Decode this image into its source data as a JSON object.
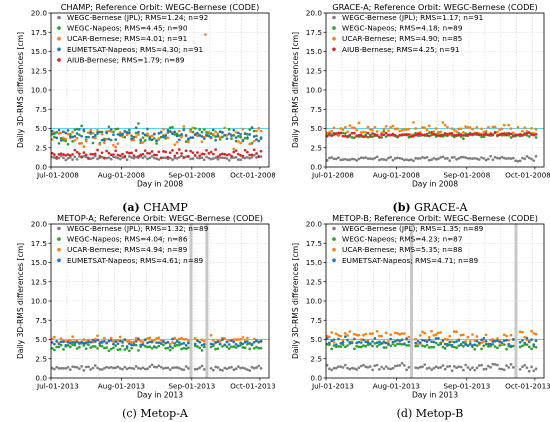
{
  "chart_data": [
    {
      "type": "scatter",
      "panel_label": "(a)",
      "caption_text": "CHAMP",
      "title": "CHAMP; Reference Orbit: WEGC-Bernese (CODE)",
      "xlabel": "Day in 2008",
      "ylabel": "Daily 3D-RMS differences [cm]",
      "ylim": [
        0,
        20
      ],
      "yticks": [
        "0.0",
        "2.5",
        "5.0",
        "7.5",
        "10.0",
        "12.5",
        "15.0",
        "17.5",
        "20.0"
      ],
      "xlim": [
        "2008-07-01",
        "2008-10-05"
      ],
      "xticks": [
        {
          "date": "2008-07-01",
          "label": "Jul-01-2008"
        },
        {
          "date": "2008-08-01",
          "label": "Aug-01-2008"
        },
        {
          "date": "2008-09-01",
          "label": "Sep-01-2008"
        },
        {
          "date": "2008-10-01",
          "label": "Oct-01-2008"
        }
      ],
      "reference_line": 5.0,
      "reference_line_color": "#5fd3e8",
      "grid": true,
      "legend_placement": "top-left",
      "gaps": [],
      "series": [
        {
          "name": "WEGC-Bernese (JPL); RMS=1.24; n=92",
          "color": "#7f7f7f",
          "mean": 1.2,
          "sd": 0.2
        },
        {
          "name": "WEGC-Napeos; RMS=4.45; n=90",
          "color": "#2ca02c",
          "mean": 4.2,
          "sd": 0.9
        },
        {
          "name": "UCAR-Bernese; RMS=4.01; n=91",
          "color": "#ff7f0e",
          "mean": 3.9,
          "sd": 0.9,
          "outliers": [
            {
              "date": "2008-09-07",
              "y": 17.2
            }
          ]
        },
        {
          "name": "EUMETSAT-Napeos; RMS=4.30; n=91",
          "color": "#1f77b4",
          "mean": 4.2,
          "sd": 0.7
        },
        {
          "name": "AIUB-Bernese; RMS=1.79; n=89",
          "color": "#d62728",
          "mean": 1.7,
          "sd": 0.4
        }
      ]
    },
    {
      "type": "scatter",
      "panel_label": "(b)",
      "caption_text": "GRACE-A",
      "title": "GRACE-A; Reference Orbit: WEGC-Bernese (CODE)",
      "xlabel": "Day in 2008",
      "ylabel": "Daily 3D-RMS differences [cm]",
      "ylim": [
        0,
        20
      ],
      "yticks": [
        "0.0",
        "2.5",
        "5.0",
        "7.5",
        "10.0",
        "12.5",
        "15.0",
        "17.5",
        "20.0"
      ],
      "xlim": [
        "2008-07-01",
        "2008-10-05"
      ],
      "xticks": [
        {
          "date": "2008-07-01",
          "label": "Jul-01-2008"
        },
        {
          "date": "2008-08-01",
          "label": "Aug-01-2008"
        },
        {
          "date": "2008-09-01",
          "label": "Sep-01-2008"
        },
        {
          "date": "2008-10-01",
          "label": "Oct-01-2008"
        }
      ],
      "reference_line": 5.0,
      "reference_line_color": "#5fd3e8",
      "grid": true,
      "legend_placement": "top-left",
      "gaps": [],
      "series": [
        {
          "name": "WEGC-Bernese (JPL); RMS=1.17; n=91",
          "color": "#7f7f7f",
          "mean": 1.1,
          "sd": 0.2
        },
        {
          "name": "WEGC-Napeos; RMS=4.18; n=89",
          "color": "#2ca02c",
          "mean": 4.15,
          "sd": 0.25
        },
        {
          "name": "UCAR-Bernese; RMS=4.90; n=85",
          "color": "#ff7f0e",
          "mean": 4.8,
          "sd": 0.6
        },
        {
          "name": "AIUB-Bernese; RMS=4.25; n=91",
          "color": "#d62728",
          "mean": 4.2,
          "sd": 0.2
        }
      ]
    },
    {
      "type": "scatter",
      "panel_label": "(c)",
      "caption_text": "Metop-A",
      "title": "METOP-A; Reference Orbit: WEGC-Bernese (CODE)",
      "xlabel": "Day in 2013",
      "ylabel": "Daily 3D-RMS differences [cm]",
      "ylim": [
        0,
        20
      ],
      "yticks": [
        "0.0",
        "2.5",
        "5.0",
        "7.5",
        "10.0",
        "12.5",
        "15.0",
        "17.5",
        "20.0"
      ],
      "xlim": [
        "2013-07-01",
        "2013-10-05"
      ],
      "xticks": [
        {
          "date": "2013-07-01",
          "label": "Jul-01-2013"
        },
        {
          "date": "2013-08-01",
          "label": "Aug-01-2013"
        },
        {
          "date": "2013-09-01",
          "label": "Sep-01-2013"
        },
        {
          "date": "2013-10-01",
          "label": "Oct-01-2013"
        }
      ],
      "reference_line": 5.0,
      "reference_line_color": "#5fd3e8",
      "grid": true,
      "legend_placement": "top-left",
      "gaps": [
        [
          "2013-08-31",
          "2013-09-01"
        ],
        [
          "2013-09-07",
          "2013-09-08"
        ]
      ],
      "series": [
        {
          "name": "WEGC-Bernese (JPL); RMS=1.32; n=89",
          "color": "#7f7f7f",
          "mean": 1.3,
          "sd": 0.2
        },
        {
          "name": "WEGC-Napeos; RMS=4.04; n=86",
          "color": "#2ca02c",
          "mean": 4.0,
          "sd": 0.3
        },
        {
          "name": "UCAR-Bernese; RMS=4.94; n=89",
          "color": "#ff7f0e",
          "mean": 4.9,
          "sd": 0.35
        },
        {
          "name": "EUMETSAT-Napeos; RMS=4.61; n=89",
          "color": "#1f77b4",
          "mean": 4.6,
          "sd": 0.3
        }
      ]
    },
    {
      "type": "scatter",
      "panel_label": "(d)",
      "caption_text": "Metop-B",
      "title": "METOP-B; Reference Orbit: WEGC-Bernese (CODE)",
      "xlabel": "Day in 2013",
      "ylabel": "Daily 3D-RMS differences [cm]",
      "ylim": [
        0,
        20
      ],
      "yticks": [
        "0.0",
        "2.5",
        "5.0",
        "7.5",
        "10.0",
        "12.5",
        "15.0",
        "17.5",
        "20.0"
      ],
      "xlim": [
        "2013-07-01",
        "2013-10-05"
      ],
      "xticks": [
        {
          "date": "2013-07-01",
          "label": "Jul-01-2013"
        },
        {
          "date": "2013-08-01",
          "label": "Aug-01-2013"
        },
        {
          "date": "2013-09-01",
          "label": "Sep-01-2013"
        },
        {
          "date": "2013-10-01",
          "label": "Oct-01-2013"
        }
      ],
      "reference_line": 5.0,
      "reference_line_color": "#5fd3e8",
      "grid": true,
      "legend_placement": "top-left",
      "gaps": [
        [
          "2013-08-07",
          "2013-08-08"
        ],
        [
          "2013-09-22",
          "2013-09-23"
        ]
      ],
      "series": [
        {
          "name": "WEGC-Bernese (JPL); RMS=1.35; n=89",
          "color": "#7f7f7f",
          "mean": 1.35,
          "sd": 0.3
        },
        {
          "name": "WEGC-Napeos; RMS=4.23; n=87",
          "color": "#2ca02c",
          "mean": 4.2,
          "sd": 0.3
        },
        {
          "name": "UCAR-Bernese; RMS=5.35; n=88",
          "color": "#ff7f0e",
          "mean": 5.3,
          "sd": 0.7
        },
        {
          "name": "EUMETSAT-Napeos; RMS=4.71; n=89",
          "color": "#1f77b4",
          "mean": 4.7,
          "sd": 0.35
        }
      ]
    }
  ]
}
